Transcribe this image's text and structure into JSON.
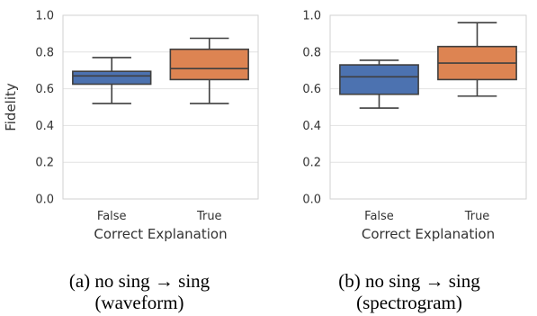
{
  "chart_data": [
    {
      "type": "box",
      "caption_lines": [
        "(a) no sing → sing",
        "(waveform)"
      ],
      "xlabel": "Correct Explanation",
      "ylabel": "Fidelity",
      "ylim": [
        0.0,
        1.0
      ],
      "yticks": [
        "0.0",
        "0.2",
        "0.4",
        "0.6",
        "0.8",
        "1.0"
      ],
      "categories": [
        "False",
        "True"
      ],
      "grid": true,
      "boxes": [
        {
          "category": "False",
          "whisker_low": 0.52,
          "q1": 0.625,
          "median": 0.67,
          "q3": 0.695,
          "whisker_high": 0.77,
          "color": "#4c72b0"
        },
        {
          "category": "True",
          "whisker_low": 0.52,
          "q1": 0.65,
          "median": 0.71,
          "q3": 0.815,
          "whisker_high": 0.875,
          "color": "#dd8452"
        }
      ]
    },
    {
      "type": "box",
      "caption_lines": [
        "(b) no sing → sing",
        "(spectrogram)"
      ],
      "xlabel": "Correct Explanation",
      "ylabel": "",
      "ylim": [
        0.0,
        1.0
      ],
      "yticks": [
        "0.0",
        "0.2",
        "0.4",
        "0.6",
        "0.8",
        "1.0"
      ],
      "categories": [
        "False",
        "True"
      ],
      "grid": true,
      "boxes": [
        {
          "category": "False",
          "whisker_low": 0.495,
          "q1": 0.57,
          "median": 0.665,
          "q3": 0.73,
          "whisker_high": 0.755,
          "color": "#4c72b0"
        },
        {
          "category": "True",
          "whisker_low": 0.56,
          "q1": 0.65,
          "median": 0.74,
          "q3": 0.83,
          "whisker_high": 0.96,
          "color": "#dd8452"
        }
      ]
    }
  ]
}
